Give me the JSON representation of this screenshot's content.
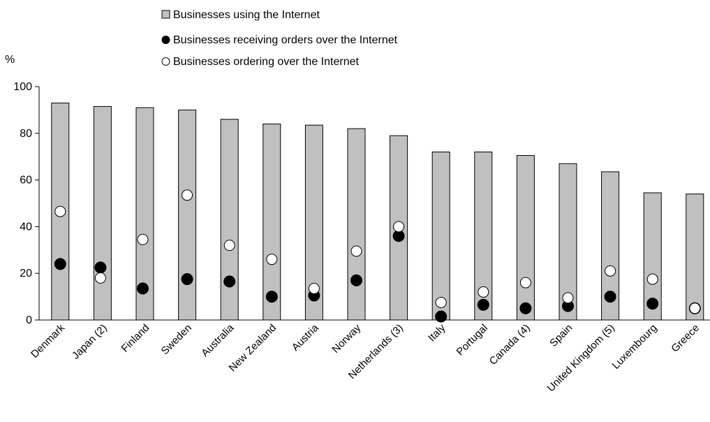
{
  "chart_data": {
    "type": "bar",
    "ylabel": "%",
    "ylim": [
      0,
      100
    ],
    "yticks": [
      0,
      20,
      40,
      60,
      80,
      100
    ],
    "grid": false,
    "legend_position": "top-center",
    "categories": [
      "Denmark",
      "Japan (2)",
      "Finland",
      "Sweden",
      "Australia",
      "New Zealand",
      "Austria",
      "Norway",
      "Netherlands (3)",
      "Italy",
      "Portugal",
      "Canada (4)",
      "Spain",
      "United Kingdom (5)",
      "Luxembourg",
      "Greece"
    ],
    "series": [
      {
        "name": "Businesses using the Internet",
        "type": "bar",
        "color": "#c0c0c0",
        "values": [
          93,
          91.5,
          91,
          90,
          86,
          84,
          83.5,
          82,
          79,
          72,
          72,
          70.5,
          67,
          63.5,
          54.5,
          54
        ]
      },
      {
        "name": "Businesses receiving orders over the Internet",
        "type": "scatter",
        "marker": "filled-circle",
        "color": "#000000",
        "values": [
          24,
          22.5,
          13.5,
          17.5,
          16.5,
          10,
          10.5,
          17,
          36,
          1.5,
          6.5,
          5,
          6,
          10,
          7,
          5
        ]
      },
      {
        "name": "Businesses ordering over the Internet",
        "type": "scatter",
        "marker": "open-circle",
        "color": "#ffffff",
        "values": [
          46.5,
          18,
          34.5,
          53.5,
          32,
          26,
          13.5,
          29.5,
          40,
          7.5,
          12,
          16,
          9.5,
          21,
          17.5,
          5
        ]
      }
    ]
  }
}
